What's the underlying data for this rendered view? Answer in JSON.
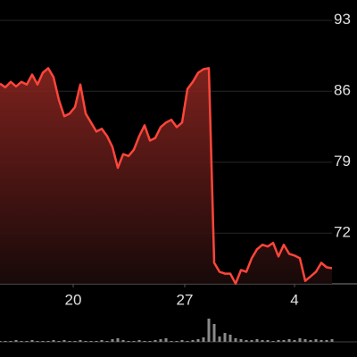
{
  "chart_data": {
    "type": "line",
    "x": [
      0,
      1,
      2,
      3,
      4,
      5,
      6,
      7,
      8,
      9,
      10,
      11,
      12,
      13,
      14,
      15,
      16,
      17,
      18,
      19,
      20,
      21,
      22,
      23,
      24,
      25,
      26,
      27,
      28,
      29,
      30,
      31,
      32,
      33,
      34,
      35,
      36,
      37,
      38,
      39,
      40,
      41,
      42,
      43,
      44,
      45,
      46,
      47,
      48,
      49,
      50,
      51,
      52,
      53,
      54,
      55,
      56,
      57,
      58,
      59,
      60,
      61,
      62
    ],
    "series": [
      {
        "color": "#ff453a",
        "values": [
          86.75,
          86.39,
          86.93,
          86.48,
          86.93,
          86.66,
          87.64,
          86.66,
          87.82,
          88.27,
          87.38,
          85.14,
          83.54,
          83.8,
          84.43,
          86.66,
          83.8,
          82.91,
          82.02,
          82.29,
          81.57,
          80.5,
          78.45,
          79.79,
          79.61,
          80.23,
          81.57,
          82.64,
          81.13,
          81.39,
          82.46,
          82.91,
          83.18,
          82.46,
          82.91,
          86.21,
          86.93,
          87.82,
          88.18,
          88.27,
          69.07,
          68.18,
          68.0,
          68.0,
          67.02,
          68.36,
          68.18,
          69.52,
          70.41,
          70.86,
          70.68,
          71.04,
          69.7,
          70.86,
          69.96,
          69.79,
          69.52,
          67.29,
          67.73,
          68.18,
          69.07,
          68.63,
          68.54
        ]
      }
    ],
    "volume": [
      1,
      1,
      1,
      2,
      1,
      1,
      2,
      1,
      1,
      1,
      2,
      1,
      2,
      1,
      1,
      2,
      1,
      1,
      1,
      2,
      1,
      3,
      4,
      2,
      1,
      1,
      2,
      1,
      1,
      2,
      3,
      4,
      1,
      1,
      2,
      1,
      2,
      3,
      5,
      26,
      20,
      6,
      10,
      8,
      4,
      3,
      2,
      2,
      3,
      2,
      2,
      1,
      2,
      2,
      3,
      2,
      4,
      3,
      2,
      3,
      2,
      2,
      3
    ],
    "xlim": [
      0,
      62
    ],
    "ylim": [
      67,
      95
    ],
    "xticks": [
      {
        "value": 13.67,
        "label": "20"
      },
      {
        "value": 34.5,
        "label": "27"
      },
      {
        "value": 55,
        "label": "4"
      }
    ],
    "yticks": [
      93,
      86,
      79,
      72
    ],
    "grid": true
  }
}
